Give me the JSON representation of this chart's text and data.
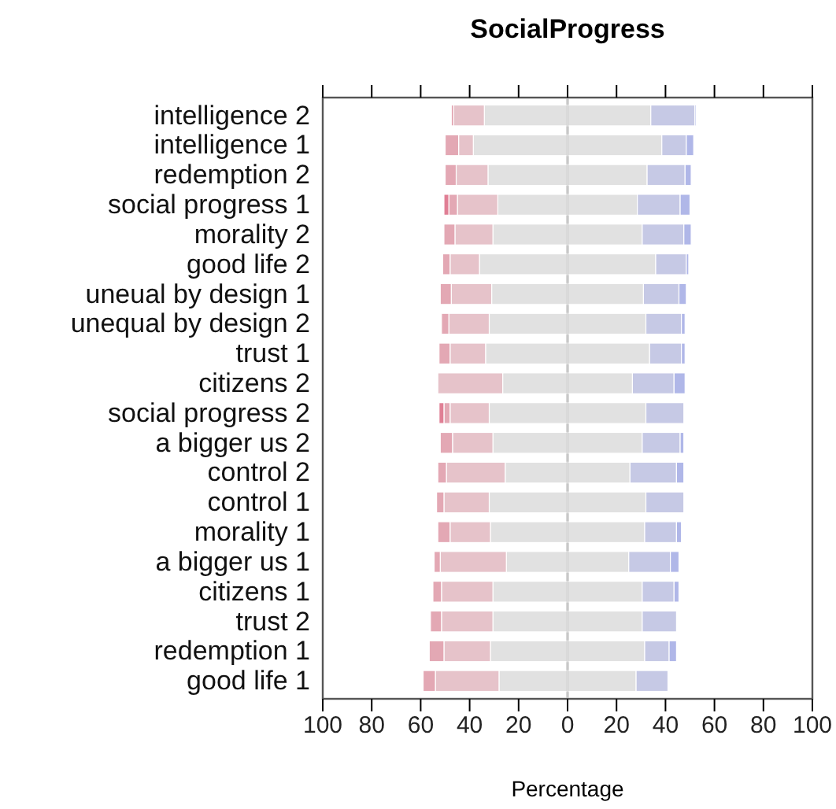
{
  "chart_data": {
    "type": "bar",
    "orientation": "horizontal",
    "stacked": true,
    "title": "SocialProgress",
    "xlabel": "Percentage",
    "categories": [
      "intelligence 2",
      "intelligence 1",
      "redemption 2",
      "social progress 1",
      "morality 2",
      "good life 2",
      "uneual by design 1",
      "unequal by design 2",
      "trust 1",
      "citizens 2",
      "social progress 2",
      "a bigger us 2",
      "control 2",
      "control 1",
      "morality 1",
      "a bigger us 1",
      "citizens 1",
      "trust 2",
      "redemption 1",
      "good life 1"
    ],
    "series": [
      {
        "color": "#e1e1e1",
        "values": [
          -34,
          -38.5,
          -32.5,
          -28.5,
          -30.5,
          -36,
          -31,
          -32,
          -33.5,
          -26.5,
          -32,
          -30.5,
          -25.5,
          -32,
          -31.5,
          -25,
          -30.5,
          -30.5,
          -31.5,
          -28
        ]
      },
      {
        "color": "#e6c3ca",
        "values": [
          -12.5,
          -6,
          -13,
          -16.5,
          -15.5,
          -12,
          -16.5,
          -16.5,
          -14.5,
          -26.5,
          -16,
          -16.5,
          -24,
          -18.5,
          -16.5,
          -27,
          -21,
          -21,
          -19,
          -26
        ]
      },
      {
        "color": "#e3a8b4",
        "values": [
          -1,
          -5.5,
          -4.5,
          -3.5,
          -4.5,
          -3,
          -4.5,
          -3,
          -4.5,
          null,
          -2.5,
          -5,
          -3.5,
          -3,
          -5,
          -2.5,
          -3.5,
          -4.5,
          -6,
          -5
        ]
      },
      {
        "color": "#e07f95",
        "values": [
          null,
          null,
          null,
          -2,
          null,
          null,
          null,
          null,
          null,
          null,
          -2,
          null,
          null,
          null,
          null,
          null,
          null,
          null,
          null,
          null
        ]
      },
      {
        "color": "#e1e1e1",
        "values": [
          34,
          38.5,
          32.5,
          28.5,
          30.5,
          36,
          31,
          32,
          33.5,
          26.5,
          32,
          30.5,
          25.5,
          32,
          31.5,
          25,
          30.5,
          30.5,
          31.5,
          28
        ]
      },
      {
        "color": "#c6c9e5",
        "values": [
          18,
          10,
          15.5,
          17.5,
          17,
          12.5,
          14.5,
          14.5,
          13,
          17,
          15.5,
          15.5,
          19,
          15.5,
          13,
          17,
          13,
          14,
          10,
          13
        ]
      },
      {
        "color": "#b0b7e8",
        "values": [
          0.5,
          3,
          2.5,
          4,
          3,
          1,
          3,
          1.5,
          1.5,
          4.5,
          null,
          1.5,
          3,
          null,
          2,
          3.5,
          2,
          null,
          3,
          null
        ]
      }
    ],
    "xlim": [
      -100,
      100
    ],
    "xticks": [
      {
        "value": -100,
        "label": "100"
      },
      {
        "value": -80,
        "label": "80"
      },
      {
        "value": -60,
        "label": "60"
      },
      {
        "value": -40,
        "label": "40"
      },
      {
        "value": -20,
        "label": "20"
      },
      0,
      20,
      40,
      60,
      80,
      100
    ],
    "ref_lines": [
      {
        "axis": "x",
        "value": 0,
        "color": "#c8c8c8"
      }
    ]
  }
}
